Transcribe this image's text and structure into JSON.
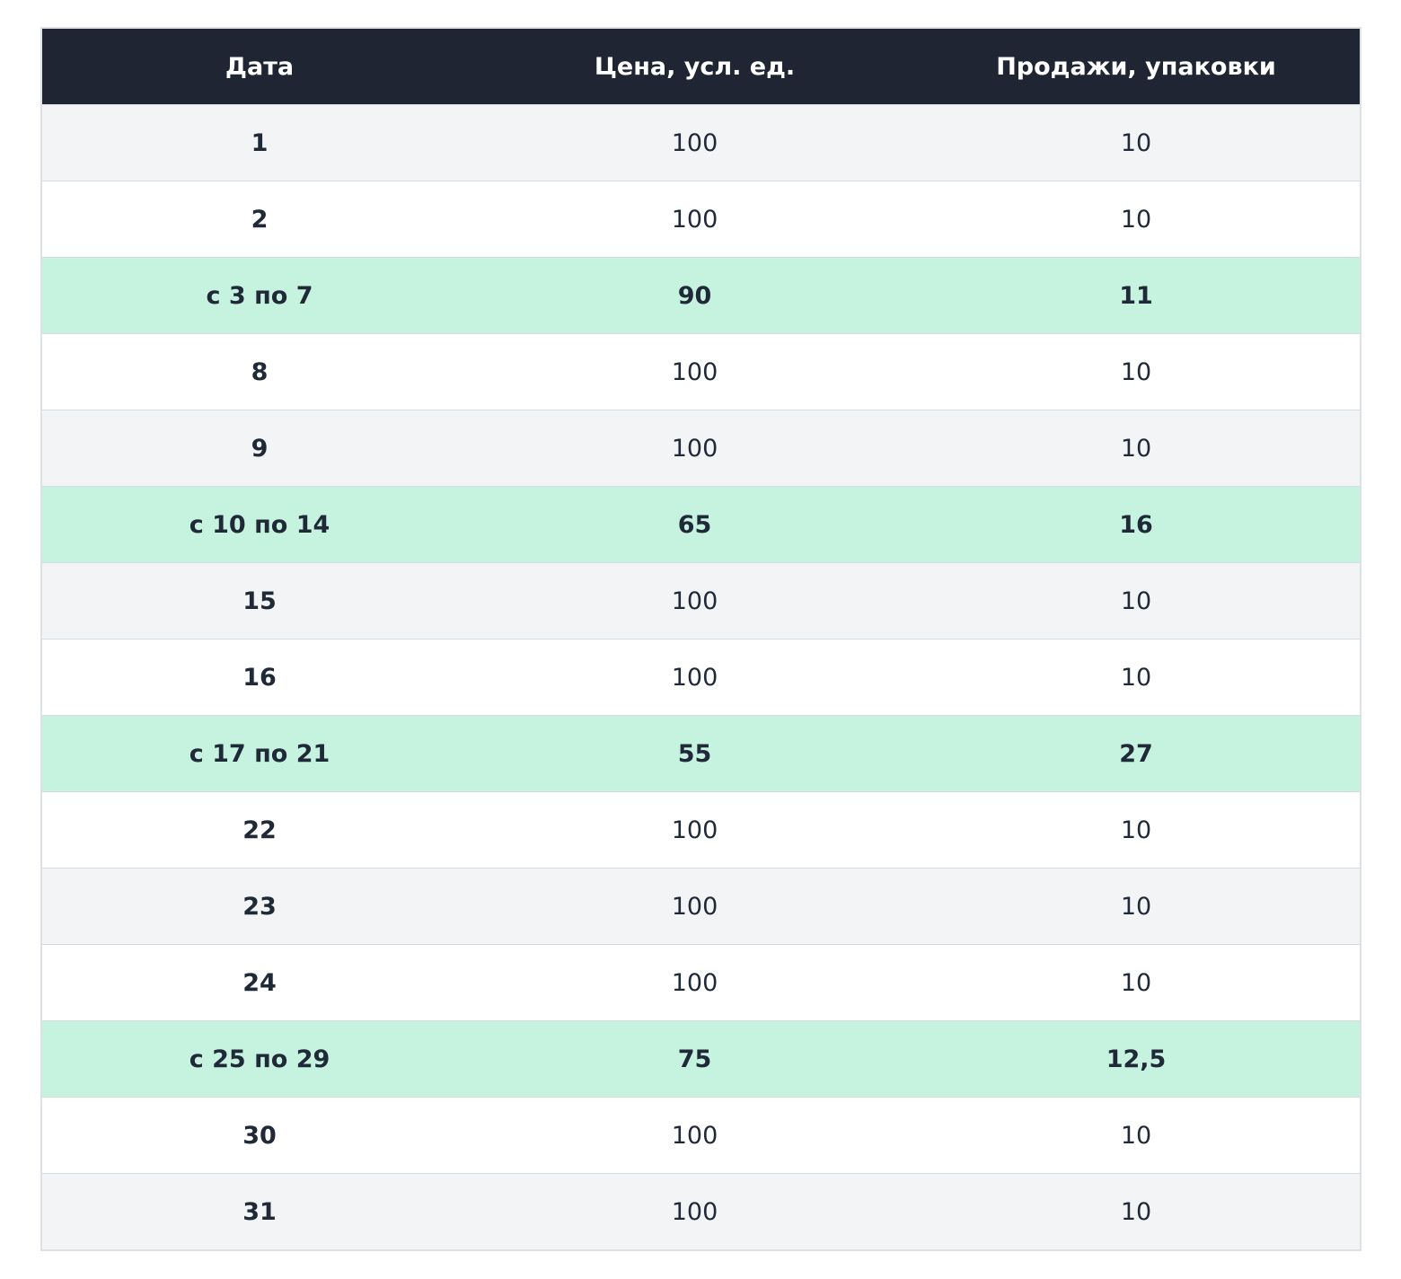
{
  "table": {
    "header": [
      "Дата",
      "Цена, усл. ед.",
      "Продажи, упаковки"
    ],
    "rows": [
      [
        "1",
        "100",
        "10"
      ],
      [
        "2",
        "100",
        "10"
      ],
      [
        "с 3 по 7",
        "90",
        "11"
      ],
      [
        "8",
        "100",
        "10"
      ],
      [
        "9",
        "100",
        "10"
      ],
      [
        "с 10 по 14",
        "65",
        "16"
      ],
      [
        "15",
        "100",
        "10"
      ],
      [
        "16",
        "100",
        "10"
      ],
      [
        "с 17 по 21",
        "55",
        "27"
      ],
      [
        "22",
        "100",
        "10"
      ],
      [
        "23",
        "100",
        "10"
      ],
      [
        "24",
        "100",
        "10"
      ],
      [
        "с 25 по 29",
        "75",
        "12,5"
      ],
      [
        "30",
        "100",
        "10"
      ],
      [
        "31",
        "100",
        "10"
      ]
    ],
    "highlighted_rows": [
      2,
      5,
      8,
      12
    ]
  }
}
